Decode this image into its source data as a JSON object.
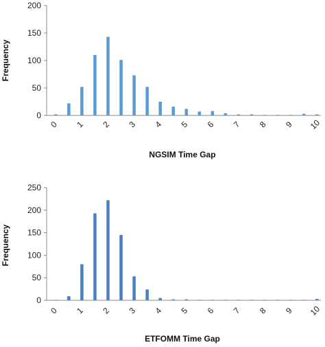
{
  "chart_data": [
    {
      "type": "bar",
      "xlabel": "NGSIM  Time Gap",
      "ylabel": "Frequency",
      "ylim": [
        0,
        200
      ],
      "yticks": [
        "0",
        "50",
        "100",
        "150",
        "200"
      ],
      "xticks": [
        "0",
        "1",
        "2",
        "3",
        "4",
        "5",
        "6",
        "7",
        "8",
        "9",
        "10"
      ],
      "x": [
        0,
        0.5,
        1,
        1.5,
        2,
        2.5,
        3,
        3.5,
        4,
        4.5,
        5,
        5.5,
        6,
        6.5,
        7,
        7.5,
        8,
        8.5,
        9,
        9.5,
        10
      ],
      "values": [
        2,
        22,
        52,
        110,
        143,
        101,
        73,
        52,
        25,
        16,
        12,
        7,
        8,
        4,
        2,
        2,
        1,
        1,
        1,
        3,
        2
      ],
      "grid": false,
      "legend": "none",
      "bar_color": "#5b9bd5"
    },
    {
      "type": "bar",
      "xlabel": "ETFOMM  Time Gap",
      "ylabel": "Frequency",
      "ylim": [
        0,
        250
      ],
      "yticks": [
        "0",
        "50",
        "100",
        "150",
        "200",
        "250"
      ],
      "xticks": [
        "0",
        "1",
        "2",
        "3",
        "4",
        "5",
        "6",
        "7",
        "8",
        "9",
        "10"
      ],
      "x": [
        0,
        0.5,
        1,
        1.5,
        2,
        2.5,
        3,
        3.5,
        4,
        4.5,
        5,
        5.5,
        6,
        6.5,
        7,
        7.5,
        8,
        8.5,
        9,
        9.5,
        10
      ],
      "values": [
        1,
        9,
        80,
        193,
        222,
        145,
        53,
        24,
        5,
        2,
        2,
        1,
        1,
        1,
        1,
        1,
        1,
        1,
        1,
        1,
        3
      ],
      "grid": false,
      "legend": "none",
      "bar_color": "#4a7fc1"
    }
  ]
}
